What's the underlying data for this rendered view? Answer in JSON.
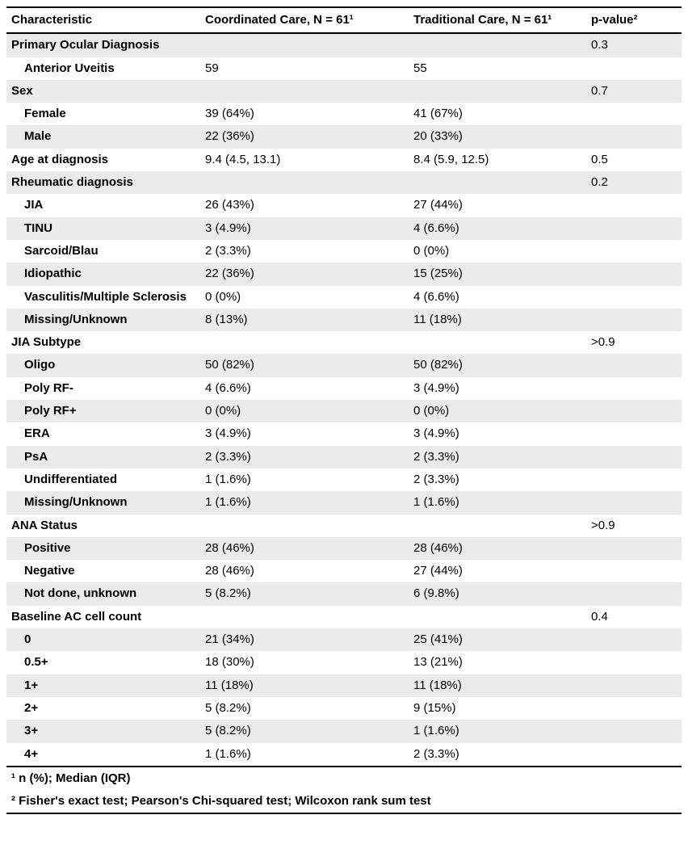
{
  "table": {
    "header": {
      "characteristic": "Characteristic",
      "coordinated": "Coordinated Care, N = 61¹",
      "traditional": "Traditional Care, N = 61¹",
      "p_value": "p-value²"
    },
    "rows": [
      {
        "label": "Primary Ocular Diagnosis",
        "indent": false,
        "coordinated": "",
        "traditional": "",
        "p": "0.3"
      },
      {
        "label": "Anterior Uveitis",
        "indent": true,
        "coordinated": "59",
        "traditional": "55",
        "p": ""
      },
      {
        "label": "Sex",
        "indent": false,
        "coordinated": "",
        "traditional": "",
        "p": "0.7"
      },
      {
        "label": "Female",
        "indent": true,
        "coordinated": "39 (64%)",
        "traditional": "41 (67%)",
        "p": ""
      },
      {
        "label": "Male",
        "indent": true,
        "coordinated": "22 (36%)",
        "traditional": "20 (33%)",
        "p": ""
      },
      {
        "label": "Age at diagnosis",
        "indent": false,
        "coordinated": "9.4 (4.5, 13.1)",
        "traditional": "8.4 (5.9, 12.5)",
        "p": "0.5"
      },
      {
        "label": "Rheumatic diagnosis",
        "indent": false,
        "coordinated": "",
        "traditional": "",
        "p": "0.2"
      },
      {
        "label": "JIA",
        "indent": true,
        "coordinated": "26 (43%)",
        "traditional": "27 (44%)",
        "p": ""
      },
      {
        "label": "TINU",
        "indent": true,
        "coordinated": "3 (4.9%)",
        "traditional": "4 (6.6%)",
        "p": ""
      },
      {
        "label": "Sarcoid/Blau",
        "indent": true,
        "coordinated": "2 (3.3%)",
        "traditional": "0 (0%)",
        "p": ""
      },
      {
        "label": "Idiopathic",
        "indent": true,
        "coordinated": "22 (36%)",
        "traditional": "15 (25%)",
        "p": ""
      },
      {
        "label": "Vasculitis/Multiple Sclerosis",
        "indent": true,
        "coordinated": "0 (0%)",
        "traditional": "4 (6.6%)",
        "p": ""
      },
      {
        "label": "Missing/Unknown",
        "indent": true,
        "coordinated": "8 (13%)",
        "traditional": "11 (18%)",
        "p": ""
      },
      {
        "label": "JIA Subtype",
        "indent": false,
        "coordinated": "",
        "traditional": "",
        "p": ">0.9"
      },
      {
        "label": "Oligo",
        "indent": true,
        "coordinated": "50 (82%)",
        "traditional": "50 (82%)",
        "p": ""
      },
      {
        "label": "Poly RF-",
        "indent": true,
        "coordinated": "4 (6.6%)",
        "traditional": "3 (4.9%)",
        "p": ""
      },
      {
        "label": "Poly RF+",
        "indent": true,
        "coordinated": "0 (0%)",
        "traditional": "0 (0%)",
        "p": ""
      },
      {
        "label": "ERA",
        "indent": true,
        "coordinated": "3 (4.9%)",
        "traditional": "3 (4.9%)",
        "p": ""
      },
      {
        "label": "PsA",
        "indent": true,
        "coordinated": "2 (3.3%)",
        "traditional": "2 (3.3%)",
        "p": ""
      },
      {
        "label": "Undifferentiated",
        "indent": true,
        "coordinated": "1 (1.6%)",
        "traditional": "2 (3.3%)",
        "p": ""
      },
      {
        "label": "Missing/Unknown",
        "indent": true,
        "coordinated": "1 (1.6%)",
        "traditional": "1 (1.6%)",
        "p": ""
      },
      {
        "label": "ANA Status",
        "indent": false,
        "coordinated": "",
        "traditional": "",
        "p": ">0.9"
      },
      {
        "label": "Positive",
        "indent": true,
        "coordinated": "28 (46%)",
        "traditional": "28 (46%)",
        "p": ""
      },
      {
        "label": "Negative",
        "indent": true,
        "coordinated": "28 (46%)",
        "traditional": "27 (44%)",
        "p": ""
      },
      {
        "label": "Not done, unknown",
        "indent": true,
        "coordinated": "5 (8.2%)",
        "traditional": "6 (9.8%)",
        "p": ""
      },
      {
        "label": "Baseline AC cell count",
        "indent": false,
        "coordinated": "",
        "traditional": "",
        "p": "0.4"
      },
      {
        "label": "0",
        "indent": true,
        "coordinated": "21 (34%)",
        "traditional": "25 (41%)",
        "p": ""
      },
      {
        "label": "0.5+",
        "indent": true,
        "coordinated": "18 (30%)",
        "traditional": "13 (21%)",
        "p": ""
      },
      {
        "label": "1+",
        "indent": true,
        "coordinated": "11 (18%)",
        "traditional": "11 (18%)",
        "p": ""
      },
      {
        "label": "2+",
        "indent": true,
        "coordinated": "5 (8.2%)",
        "traditional": "9 (15%)",
        "p": ""
      },
      {
        "label": "3+",
        "indent": true,
        "coordinated": "5 (8.2%)",
        "traditional": "1 (1.6%)",
        "p": ""
      },
      {
        "label": "4+",
        "indent": true,
        "coordinated": "1 (1.6%)",
        "traditional": "2 (3.3%)",
        "p": ""
      }
    ],
    "footnotes": [
      "¹ n (%); Median (IQR)",
      "² Fisher's exact test; Pearson's Chi-squared test; Wilcoxon rank sum test"
    ],
    "colors": {
      "stripe": "#ebebeb",
      "border": "#000000",
      "text": "#000000"
    }
  }
}
